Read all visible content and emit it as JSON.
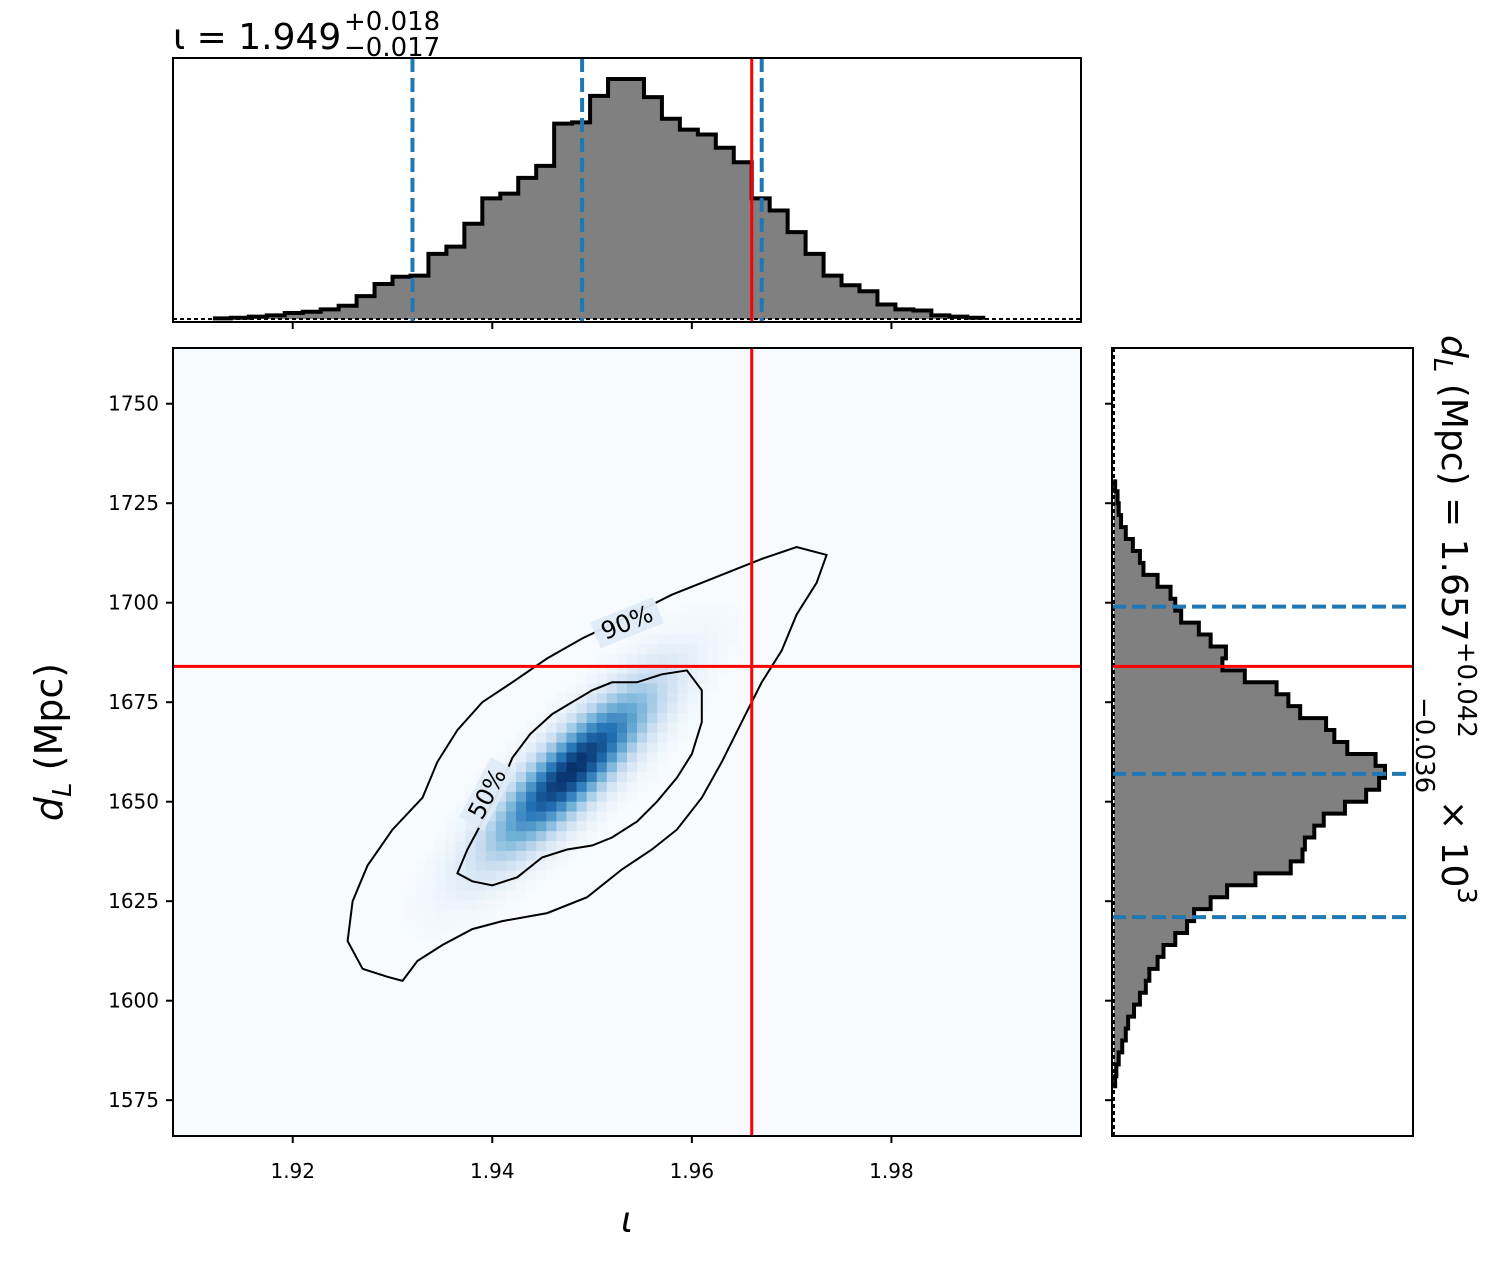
{
  "chart_data": {
    "type": "corner-plot",
    "parameters": [
      "iota",
      "d_L"
    ],
    "top_histogram": {
      "title": "ι = 1.949",
      "title_sup": "+0.018",
      "title_sub": "−0.017",
      "median": 1.949,
      "lower_90": 1.932,
      "upper_90": 1.967,
      "injected": 1.966,
      "bin_edges": [
        1.912,
        1.9138,
        1.9156,
        1.9174,
        1.9192,
        1.921,
        1.9228,
        1.9246,
        1.9264,
        1.9282,
        1.93,
        1.9318,
        1.9336,
        1.9354,
        1.9372,
        1.939,
        1.9408,
        1.9426,
        1.9444,
        1.9462,
        1.948,
        1.9498,
        1.9516,
        1.9534,
        1.9552,
        1.957,
        1.9588,
        1.9606,
        1.9624,
        1.9642,
        1.966,
        1.9678,
        1.9696,
        1.9714,
        1.9732,
        1.975,
        1.9768,
        1.9786,
        1.9804,
        1.9822,
        1.984,
        1.9858,
        1.9876,
        1.9894
      ],
      "counts": [
        0.5,
        1,
        2,
        3,
        5,
        6,
        8,
        11,
        19,
        29,
        35,
        36,
        54,
        60,
        79,
        100,
        104,
        117,
        127,
        162,
        163,
        185,
        199,
        199,
        184,
        166,
        157,
        153,
        142,
        130,
        100,
        90,
        72,
        54,
        36,
        28,
        23,
        12,
        8,
        7,
        3,
        2,
        1
      ]
    },
    "joint": {
      "x_axis_label": "ι",
      "y_axis_label_main": "d",
      "y_axis_label_sub": "L",
      "y_axis_label_unit": " (Mpc)",
      "xlim": [
        1.908,
        1.999
      ],
      "ylim": [
        1566,
        1764
      ],
      "x_ticks": [
        1.92,
        1.94,
        1.96,
        1.98
      ],
      "x_tick_labels": [
        "1.92",
        "1.94",
        "1.96",
        "1.98"
      ],
      "y_ticks": [
        1575,
        1600,
        1625,
        1650,
        1675,
        1700,
        1725,
        1750
      ],
      "y_tick_labels": [
        "1575",
        "1600",
        "1625",
        "1650",
        "1675",
        "1700",
        "1725",
        "1750"
      ],
      "density_peak": [
        1.948,
        1658
      ],
      "injected": [
        1.966,
        1684
      ],
      "contours": [
        {
          "label": "50%",
          "points": [
            [
              1.9365,
              1632
            ],
            [
              1.9375,
              1638
            ],
            [
              1.939,
              1645
            ],
            [
              1.9405,
              1652
            ],
            [
              1.942,
              1661
            ],
            [
              1.9438,
              1667
            ],
            [
              1.946,
              1672
            ],
            [
              1.948,
              1675
            ],
            [
              1.95,
              1678
            ],
            [
              1.952,
              1680
            ],
            [
              1.9545,
              1680
            ],
            [
              1.957,
              1682
            ],
            [
              1.9595,
              1683
            ],
            [
              1.961,
              1678
            ],
            [
              1.961,
              1670
            ],
            [
              1.96,
              1662
            ],
            [
              1.9585,
              1656
            ],
            [
              1.9565,
              1650
            ],
            [
              1.9545,
              1645
            ],
            [
              1.952,
              1641
            ],
            [
              1.95,
              1639
            ],
            [
              1.9475,
              1638
            ],
            [
              1.945,
              1636
            ],
            [
              1.9425,
              1631
            ],
            [
              1.94,
              1629
            ],
            [
              1.938,
              1630
            ],
            [
              1.9365,
              1632
            ]
          ],
          "label_at": [
            1.9395,
            1652
          ]
        },
        {
          "label": "90%",
          "points": [
            [
              1.9255,
              1615
            ],
            [
              1.926,
              1625
            ],
            [
              1.9275,
              1634
            ],
            [
              1.93,
              1643
            ],
            [
              1.933,
              1651
            ],
            [
              1.9345,
              1660
            ],
            [
              1.9365,
              1668
            ],
            [
              1.939,
              1675
            ],
            [
              1.942,
              1680
            ],
            [
              1.9455,
              1686
            ],
            [
              1.949,
              1691
            ],
            [
              1.954,
              1697
            ],
            [
              1.958,
              1702
            ],
            [
              1.963,
              1707
            ],
            [
              1.967,
              1711
            ],
            [
              1.9705,
              1714
            ],
            [
              1.9735,
              1712
            ],
            [
              1.9725,
              1705
            ],
            [
              1.9705,
              1697
            ],
            [
              1.969,
              1688
            ],
            [
              1.967,
              1680
            ],
            [
              1.965,
              1670
            ],
            [
              1.963,
              1660
            ],
            [
              1.961,
              1651
            ],
            [
              1.9585,
              1643
            ],
            [
              1.956,
              1638
            ],
            [
              1.953,
              1633
            ],
            [
              1.9495,
              1626
            ],
            [
              1.9455,
              1622
            ],
            [
              1.941,
              1620
            ],
            [
              1.938,
              1618
            ],
            [
              1.935,
              1614
            ],
            [
              1.9325,
              1610
            ],
            [
              1.931,
              1605
            ],
            [
              1.9295,
              1606
            ],
            [
              1.927,
              1608
            ],
            [
              1.9255,
              1615
            ]
          ],
          "label_at": [
            1.9535,
            1695
          ]
        }
      ]
    },
    "right_histogram": {
      "title": "d",
      "title_sub_letter": "L",
      "title_rest": " (Mpc) = 1.657",
      "title_sup": "+0.042",
      "title_sub": "−0.036",
      "title_scale": " × 10",
      "title_scale_exp": "3",
      "median": 1657,
      "lower_90": 1621,
      "upper_90": 1699,
      "injected": 1684,
      "bin_edges": [
        1578,
        1581,
        1584,
        1587,
        1590,
        1593,
        1596,
        1599,
        1602,
        1605,
        1608,
        1611,
        1614,
        1617,
        1620,
        1623,
        1626,
        1629,
        1632,
        1635,
        1638,
        1641,
        1644,
        1647,
        1650,
        1653,
        1656,
        1659,
        1662,
        1665,
        1668,
        1671,
        1674,
        1677,
        1680,
        1683,
        1686,
        1689,
        1692,
        1695,
        1698,
        1701,
        1704,
        1707,
        1710,
        1713,
        1716,
        1719,
        1722,
        1725,
        1728,
        1731
      ],
      "counts": [
        1,
        2,
        4,
        7,
        10,
        12,
        17,
        22,
        27,
        30,
        37,
        42,
        52,
        62,
        68,
        82,
        96,
        120,
        150,
        160,
        162,
        170,
        178,
        196,
        214,
        225,
        230,
        222,
        198,
        187,
        180,
        158,
        148,
        138,
        111,
        92,
        95,
        82,
        72,
        57,
        52,
        48,
        37,
        25,
        22,
        16,
        10,
        6,
        4,
        3,
        1
      ]
    },
    "colors": {
      "histogram_fill": "#808080",
      "histogram_edge": "#000000",
      "quantile_lines": "#1f77b4",
      "injection_lines": "#ff0000",
      "density_low": "#f7fbff",
      "density_high": "#08306b"
    },
    "grid": false
  }
}
